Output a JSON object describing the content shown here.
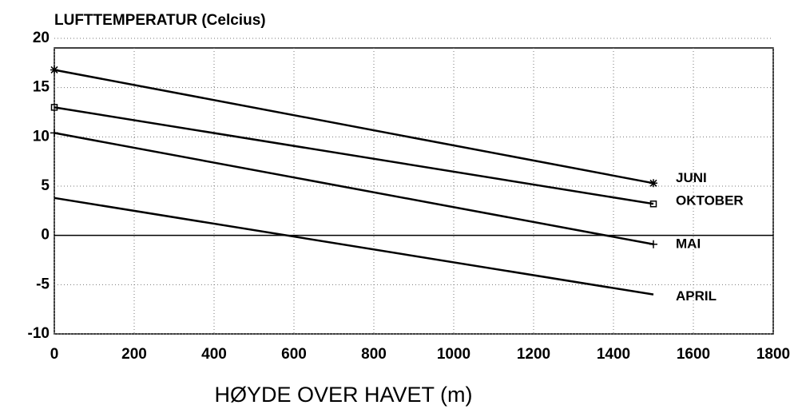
{
  "chart_data": {
    "type": "line",
    "title": "LUFTTEMPERATUR (Celcius)",
    "x_label": "HØYDE OVER HAVET (m)",
    "x": [
      0,
      1500
    ],
    "series": [
      {
        "name": "JUNI",
        "color": "#000000",
        "marker": "star",
        "values": [
          16.8,
          5.3
        ]
      },
      {
        "name": "OKTOBER",
        "color": "#000000",
        "marker": "square",
        "values": [
          13.0,
          3.2
        ]
      },
      {
        "name": "MAI",
        "color": "#000000",
        "marker": "plus",
        "values": [
          10.4,
          -0.9
        ]
      },
      {
        "name": "APRIL",
        "color": "#000000",
        "marker": "none",
        "values": [
          3.8,
          -6.0
        ]
      }
    ],
    "xlim": [
      0,
      1800
    ],
    "xticks": [
      0,
      200,
      400,
      600,
      800,
      1000,
      1200,
      1400,
      1600,
      1800
    ],
    "ylim": [
      -10,
      20
    ],
    "yticks": [
      -10,
      -5,
      0,
      5,
      10,
      15,
      20
    ],
    "grid": true
  }
}
